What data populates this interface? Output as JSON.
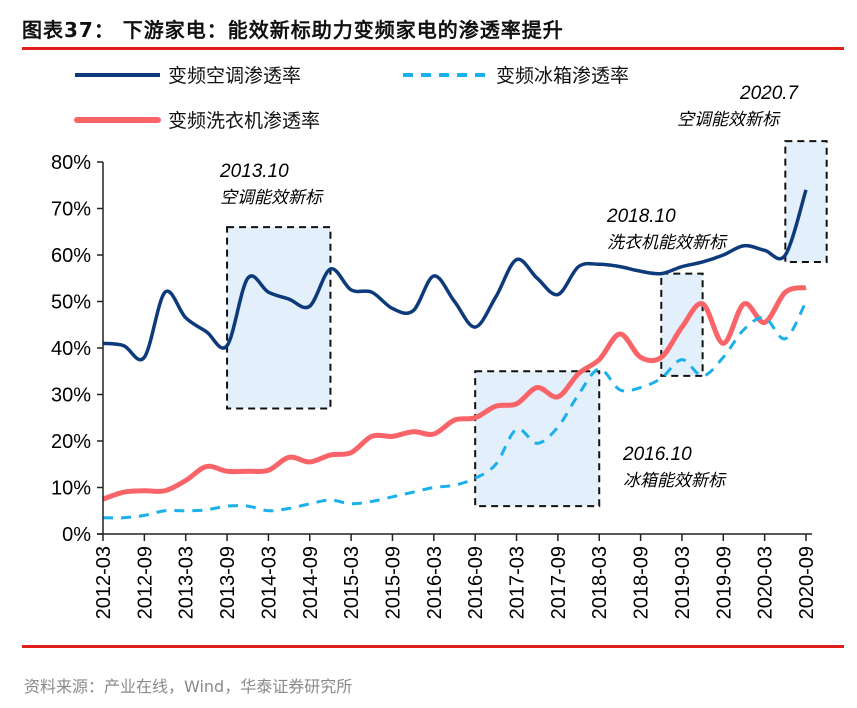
{
  "title": "图表37：  下游家电：能效新标助力变频家电的渗透率提升",
  "source": "资料来源：产业在线，Wind，华泰证券研究所",
  "chart_data": {
    "type": "line",
    "title": "",
    "xlabel": "",
    "ylabel": "",
    "ylim": [
      0,
      80
    ],
    "yticks": [
      "0%",
      "10%",
      "20%",
      "30%",
      "40%",
      "50%",
      "60%",
      "70%",
      "80%"
    ],
    "xtick_labels": [
      "2012-03",
      "2012-09",
      "2013-03",
      "2013-09",
      "2014-03",
      "2014-09",
      "2015-03",
      "2015-09",
      "2016-03",
      "2016-09",
      "2017-03",
      "2017-09",
      "2018-03",
      "2018-09",
      "2019-03",
      "2019-09",
      "2020-03",
      "2020-09"
    ],
    "x": [
      "2012-03",
      "2012-06",
      "2012-09",
      "2012-12",
      "2013-03",
      "2013-06",
      "2013-09",
      "2013-12",
      "2014-03",
      "2014-06",
      "2014-09",
      "2014-12",
      "2015-03",
      "2015-06",
      "2015-09",
      "2015-12",
      "2016-03",
      "2016-06",
      "2016-09",
      "2016-12",
      "2017-03",
      "2017-06",
      "2017-09",
      "2017-12",
      "2018-03",
      "2018-06",
      "2018-09",
      "2018-12",
      "2019-03",
      "2019-06",
      "2019-09",
      "2019-12",
      "2020-03",
      "2020-06",
      "2020-09"
    ],
    "grid": false,
    "legend": "top",
    "series": [
      {
        "name": "变频空调渗透率",
        "color": "#0d3a7a",
        "style": "solid",
        "values": [
          41,
          40.5,
          38,
          52,
          46.5,
          43.5,
          40.5,
          55,
          52,
          50.5,
          49,
          57,
          52.5,
          52,
          48.5,
          48,
          55.5,
          50,
          44.5,
          51,
          59,
          55,
          51.5,
          57.5,
          58,
          57.5,
          56.5,
          56,
          57.5,
          58.5,
          60,
          62,
          61,
          60,
          74
        ]
      },
      {
        "name": "变频冰箱渗透率",
        "color": "#1ab0ec",
        "style": "dashed",
        "values": [
          3.5,
          3.5,
          4,
          5,
          5,
          5.2,
          6,
          6,
          5,
          5.5,
          6.5,
          7.3,
          6.5,
          7,
          8,
          9,
          10,
          10.5,
          12,
          15,
          22.5,
          19.5,
          23,
          30,
          35.5,
          31,
          31.5,
          33.5,
          37.5,
          34,
          38,
          44,
          46.5,
          42,
          50
        ]
      },
      {
        "name": "变频洗衣机渗透率",
        "color": "#f96468",
        "style": "solid",
        "values": [
          7.5,
          9,
          9.3,
          9.3,
          11.5,
          14.5,
          13.5,
          13.5,
          13.7,
          16.5,
          15.5,
          17,
          17.5,
          21,
          21,
          22,
          21.5,
          24.5,
          25,
          27.5,
          28,
          31.5,
          29.5,
          34.5,
          37.5,
          43,
          38,
          38,
          44.5,
          49.5,
          41,
          49.5,
          45.5,
          52,
          53
        ]
      }
    ],
    "annotations": [
      {
        "date": "2013.10",
        "text": "空调能效新标",
        "range": [
          "2013-09",
          "2014-12"
        ],
        "yrange": [
          27,
          66
        ]
      },
      {
        "date": "2016.10",
        "text": "冰箱能效新标",
        "range": [
          "2016-09",
          "2018-03"
        ],
        "yrange": [
          6,
          35
        ]
      },
      {
        "date": "2018.10",
        "text": "洗衣机能效新标",
        "range": [
          "2018-12",
          "2019-06"
        ],
        "yrange": [
          34,
          56
        ]
      },
      {
        "date": "2020.7",
        "text": "空调能效新标",
        "range": [
          "2020-06",
          "2020-12"
        ],
        "yrange": [
          58.5,
          84.5
        ]
      }
    ],
    "box_fill": "#e3effb"
  }
}
